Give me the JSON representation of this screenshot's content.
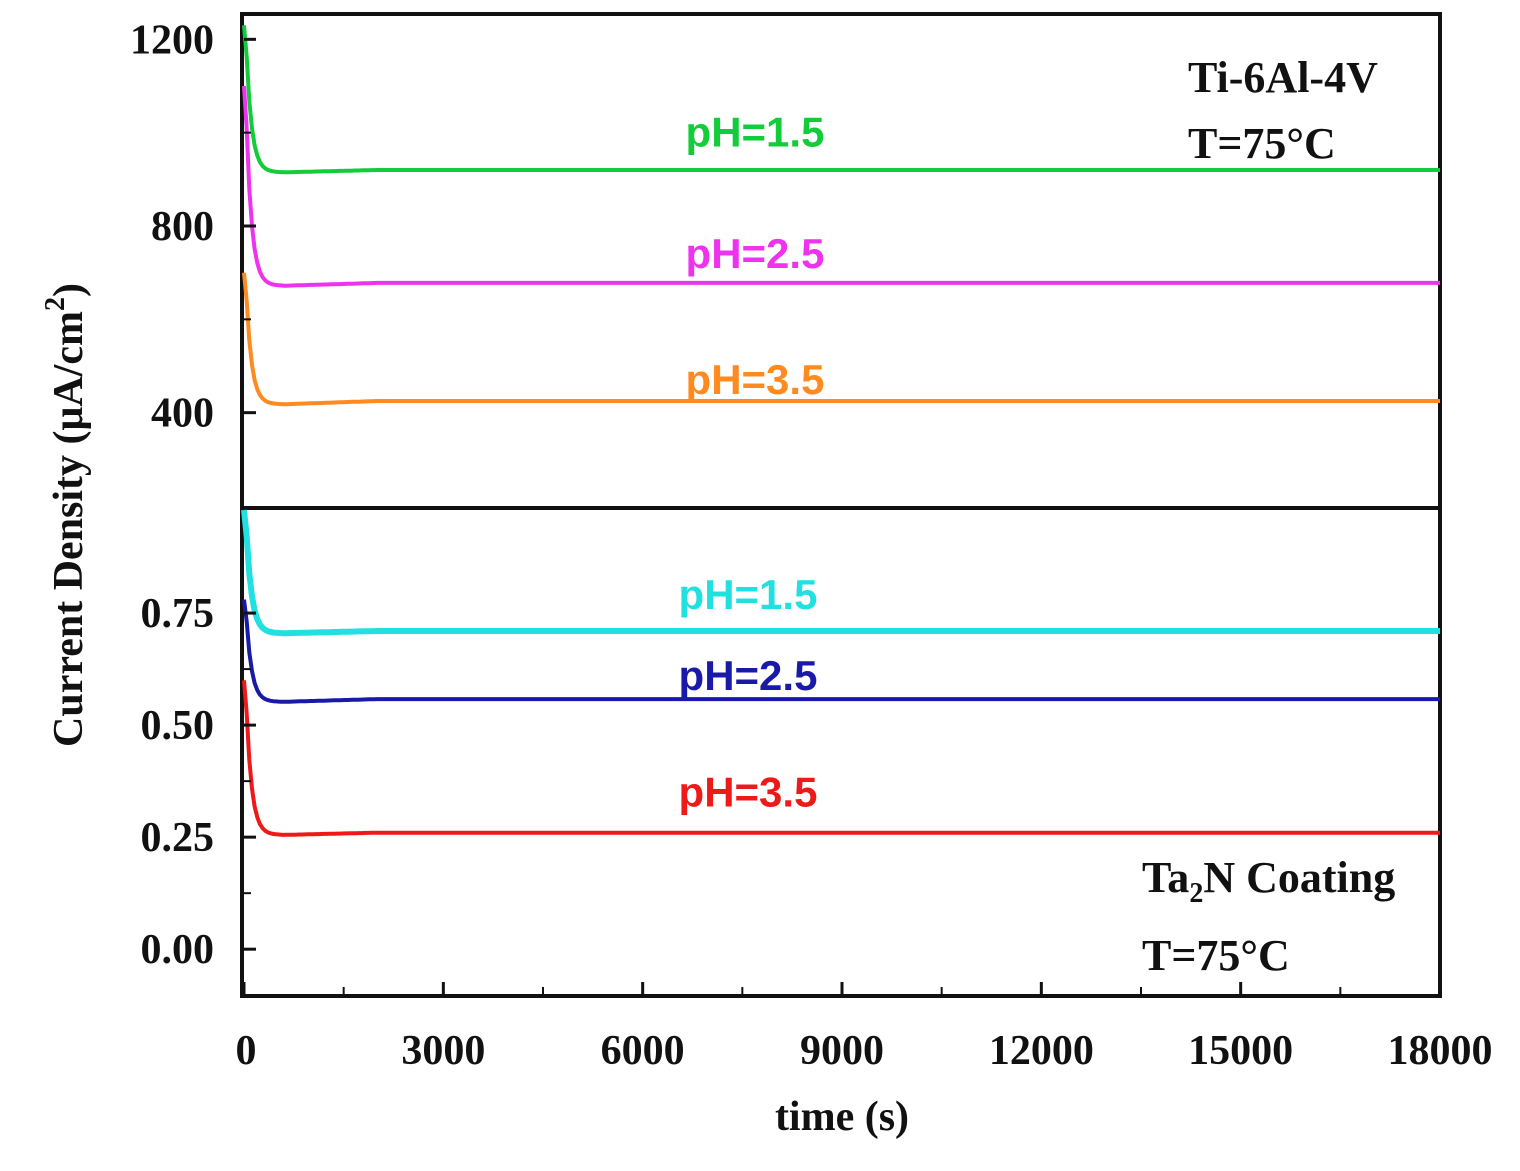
{
  "chart_data": {
    "type": "line",
    "title": "",
    "xlabel": "time (s)",
    "ylabel_main": "Current Density (μA/cm",
    "ylabel_sup": "2",
    "ylabel_close": ")",
    "xlim": [
      0,
      18000
    ],
    "xticks": [
      "0",
      "3000",
      "6000",
      "9000",
      "12000",
      "15000",
      "18000"
    ],
    "xtick_values": [
      0,
      3000,
      6000,
      9000,
      12000,
      15000,
      18000
    ],
    "panels": [
      {
        "name": "Ti-6Al-4V",
        "annotation_line1": "Ti-6Al-4V",
        "annotation_line2": "T=75°C",
        "ylim": [
          200,
          1250
        ],
        "yticks": [
          "400",
          "800",
          "1200"
        ],
        "ytick_values": [
          400,
          800,
          1200
        ],
        "series": [
          {
            "name": "pH=1.5",
            "color": "#12cc3a",
            "label_y": 1000,
            "spike": 1230,
            "dip": 915,
            "steady": 920
          },
          {
            "name": "pH=2.5",
            "color": "#ee33ee",
            "label_y": 740,
            "spike": 1100,
            "dip": 672,
            "steady": 678
          },
          {
            "name": "pH=3.5",
            "color": "#ff8a20",
            "label_y": 470,
            "spike": 700,
            "dip": 418,
            "steady": 425
          }
        ]
      },
      {
        "name": "Ta2N Coating",
        "annotation_line1_main": "Ta",
        "annotation_line1_sub": "2",
        "annotation_line1_rest": "N Coating",
        "annotation_line2": "T=75°C",
        "ylim": [
          -0.1,
          0.98
        ],
        "yticks": [
          "0.00",
          "0.25",
          "0.50",
          "0.75"
        ],
        "ytick_values": [
          0.0,
          0.25,
          0.5,
          0.75
        ],
        "series": [
          {
            "name": "pH=1.5",
            "color": "#22e0e0",
            "label_y": 0.79,
            "spike": 0.98,
            "dip": 0.705,
            "steady": 0.71
          },
          {
            "name": "pH=2.5",
            "color": "#1a1aa8",
            "label_y": 0.61,
            "spike": 0.78,
            "dip": 0.552,
            "steady": 0.558
          },
          {
            "name": "pH=3.5",
            "color": "#ee1a1a",
            "label_y": 0.35,
            "spike": 0.6,
            "dip": 0.255,
            "steady": 0.26
          }
        ]
      }
    ]
  }
}
